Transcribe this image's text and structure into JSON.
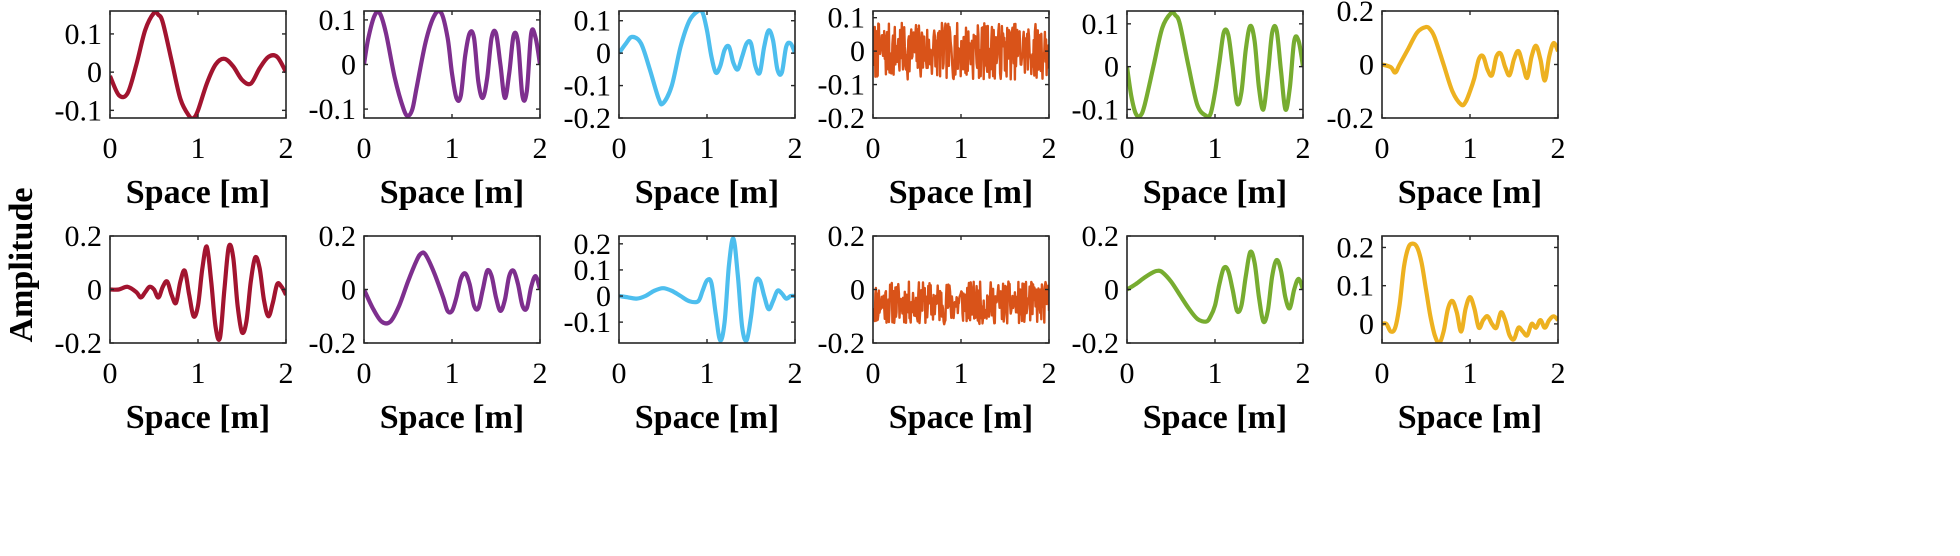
{
  "figure": {
    "ylabel": "Amplitude"
  },
  "chart_data": [
    {
      "type": "line",
      "row": 0,
      "col": 0,
      "color": "#A2142F",
      "xlabel": "Space [m]",
      "xlim": [
        0,
        2
      ],
      "ylim": [
        -0.12,
        0.16
      ],
      "xticks": [
        0,
        1,
        2
      ],
      "yticks": [
        -0.1,
        0,
        0.1
      ],
      "ytick_labels": [
        "-0.1",
        "0",
        "0.1"
      ],
      "series": [
        {
          "x": [
            0,
            0.1,
            0.2,
            0.3,
            0.4,
            0.5,
            0.55,
            0.6,
            0.7,
            0.8,
            0.9,
            0.95,
            1.0,
            1.1,
            1.2,
            1.3,
            1.4,
            1.5,
            1.6,
            1.7,
            1.8,
            1.9,
            2.0
          ],
          "y": [
            -0.01,
            -0.06,
            -0.055,
            0.02,
            0.11,
            0.155,
            0.15,
            0.13,
            0.03,
            -0.07,
            -0.115,
            -0.12,
            -0.1,
            -0.03,
            0.02,
            0.035,
            0.015,
            -0.02,
            -0.03,
            0.01,
            0.04,
            0.04,
            0.0
          ]
        }
      ]
    },
    {
      "type": "line",
      "row": 0,
      "col": 1,
      "color": "#7E2F8E",
      "xlabel": "Space [m]",
      "xlim": [
        0,
        2
      ],
      "ylim": [
        -0.12,
        0.12
      ],
      "xticks": [
        0,
        1,
        2
      ],
      "yticks": [
        -0.1,
        0,
        0.1
      ],
      "ytick_labels": [
        "-0.1",
        "0",
        "0.1"
      ],
      "series": [
        {
          "x": [
            0,
            0.05,
            0.12,
            0.18,
            0.25,
            0.35,
            0.45,
            0.5,
            0.55,
            0.6,
            0.7,
            0.8,
            0.88,
            0.95,
            1.0,
            1.05,
            1.1,
            1.15,
            1.2,
            1.25,
            1.3,
            1.35,
            1.4,
            1.45,
            1.5,
            1.55,
            1.6,
            1.65,
            1.7,
            1.75,
            1.8,
            1.85,
            1.9,
            1.95,
            2.0
          ],
          "y": [
            0.0,
            0.06,
            0.11,
            0.115,
            0.07,
            -0.03,
            -0.1,
            -0.115,
            -0.1,
            -0.05,
            0.05,
            0.11,
            0.115,
            0.06,
            -0.02,
            -0.075,
            -0.07,
            0.02,
            0.07,
            0.06,
            -0.04,
            -0.075,
            -0.03,
            0.06,
            0.07,
            0.0,
            -0.075,
            -0.02,
            0.065,
            0.05,
            -0.07,
            -0.06,
            0.07,
            0.06,
            0.0
          ]
        }
      ]
    },
    {
      "type": "line",
      "row": 0,
      "col": 2,
      "color": "#4DBEEE",
      "xlabel": "Space [m]",
      "xlim": [
        0,
        2
      ],
      "ylim": [
        -0.2,
        0.13
      ],
      "xticks": [
        0,
        1,
        2
      ],
      "yticks": [
        -0.2,
        -0.1,
        0,
        0.1
      ],
      "ytick_labels": [
        "-0.2",
        "-0.1",
        "0",
        "0.1"
      ],
      "series": [
        {
          "x": [
            0,
            0.08,
            0.15,
            0.25,
            0.35,
            0.45,
            0.5,
            0.6,
            0.7,
            0.8,
            0.9,
            0.95,
            1.0,
            1.05,
            1.1,
            1.15,
            1.2,
            1.25,
            1.3,
            1.35,
            1.4,
            1.45,
            1.5,
            1.55,
            1.6,
            1.65,
            1.7,
            1.75,
            1.8,
            1.85,
            1.9,
            1.95,
            2.0
          ],
          "y": [
            0.0,
            0.03,
            0.05,
            0.03,
            -0.05,
            -0.14,
            -0.155,
            -0.1,
            0.02,
            0.1,
            0.13,
            0.125,
            0.07,
            -0.01,
            -0.06,
            -0.04,
            0.01,
            0.02,
            -0.03,
            -0.05,
            -0.01,
            0.03,
            0.03,
            -0.04,
            -0.06,
            0.02,
            0.07,
            0.04,
            -0.05,
            -0.06,
            0.02,
            0.03,
            0.0
          ]
        }
      ]
    },
    {
      "type": "line",
      "row": 0,
      "col": 3,
      "color": "#D95319",
      "xlabel": "Space [m]",
      "xlim": [
        0,
        2
      ],
      "ylim": [
        -0.2,
        0.12
      ],
      "xticks": [
        0,
        1,
        2
      ],
      "yticks": [
        -0.2,
        -0.1,
        0,
        0.1
      ],
      "ytick_labels": [
        "-0.2",
        "-0.1",
        "0",
        "0.1"
      ],
      "noise": {
        "n": 300,
        "center": 0.0,
        "amplitude": 0.085,
        "seed": 7
      },
      "series": []
    },
    {
      "type": "line",
      "row": 0,
      "col": 4,
      "color": "#77AC30",
      "xlabel": "Space [m]",
      "xlim": [
        0,
        2
      ],
      "ylim": [
        -0.12,
        0.13
      ],
      "xticks": [
        0,
        1,
        2
      ],
      "yticks": [
        -0.1,
        0,
        0.1
      ],
      "ytick_labels": [
        "-0.1",
        "0",
        "0.1"
      ],
      "series": [
        {
          "x": [
            0,
            0.05,
            0.1,
            0.15,
            0.2,
            0.3,
            0.4,
            0.5,
            0.55,
            0.6,
            0.7,
            0.8,
            0.9,
            0.95,
            1.0,
            1.05,
            1.1,
            1.15,
            1.2,
            1.25,
            1.3,
            1.35,
            1.4,
            1.45,
            1.5,
            1.55,
            1.6,
            1.65,
            1.7,
            1.75,
            1.8,
            1.85,
            1.9,
            1.95,
            2.0
          ],
          "y": [
            0.0,
            -0.07,
            -0.11,
            -0.115,
            -0.09,
            0.0,
            0.09,
            0.125,
            0.12,
            0.1,
            0.0,
            -0.09,
            -0.115,
            -0.11,
            -0.06,
            0.01,
            0.08,
            0.075,
            0.0,
            -0.085,
            -0.06,
            0.04,
            0.095,
            0.06,
            -0.05,
            -0.1,
            -0.02,
            0.08,
            0.085,
            -0.01,
            -0.1,
            -0.05,
            0.06,
            0.06,
            0.0
          ]
        }
      ]
    },
    {
      "type": "line",
      "row": 0,
      "col": 5,
      "color": "#EDB120",
      "xlabel": "Space [m]",
      "xlim": [
        0,
        2
      ],
      "ylim": [
        -0.2,
        0.2
      ],
      "xticks": [
        0,
        1,
        2
      ],
      "yticks": [
        -0.2,
        0,
        0.2
      ],
      "ytick_labels": [
        "-0.2",
        "0",
        "0.2"
      ],
      "series": [
        {
          "x": [
            0,
            0.1,
            0.15,
            0.2,
            0.3,
            0.4,
            0.5,
            0.55,
            0.6,
            0.7,
            0.8,
            0.9,
            0.95,
            1.0,
            1.05,
            1.1,
            1.15,
            1.2,
            1.25,
            1.3,
            1.35,
            1.4,
            1.45,
            1.5,
            1.55,
            1.6,
            1.65,
            1.7,
            1.75,
            1.8,
            1.85,
            1.9,
            1.95,
            2.0
          ],
          "y": [
            0.0,
            -0.01,
            -0.03,
            0.0,
            0.06,
            0.12,
            0.14,
            0.13,
            0.1,
            0.0,
            -0.1,
            -0.15,
            -0.14,
            -0.1,
            -0.05,
            0.02,
            0.03,
            -0.02,
            -0.04,
            0.03,
            0.04,
            -0.01,
            -0.04,
            0.02,
            0.05,
            0.0,
            -0.05,
            0.03,
            0.07,
            0.02,
            -0.06,
            0.03,
            0.08,
            0.05
          ]
        }
      ]
    },
    {
      "type": "line",
      "row": 1,
      "col": 0,
      "color": "#A2142F",
      "xlabel": "Space [m]",
      "xlim": [
        0,
        2
      ],
      "ylim": [
        -0.2,
        0.2
      ],
      "xticks": [
        0,
        1,
        2
      ],
      "yticks": [
        -0.2,
        0,
        0.2
      ],
      "ytick_labels": [
        "-0.2",
        "0",
        "0.2"
      ],
      "series": [
        {
          "x": [
            0,
            0.1,
            0.2,
            0.3,
            0.35,
            0.4,
            0.45,
            0.5,
            0.55,
            0.6,
            0.65,
            0.7,
            0.75,
            0.8,
            0.85,
            0.9,
            0.95,
            1.0,
            1.05,
            1.1,
            1.15,
            1.2,
            1.25,
            1.3,
            1.35,
            1.4,
            1.45,
            1.5,
            1.55,
            1.6,
            1.65,
            1.7,
            1.75,
            1.8,
            1.85,
            1.9,
            1.95,
            2.0
          ],
          "y": [
            0.0,
            0.0,
            0.01,
            -0.01,
            -0.03,
            -0.01,
            0.01,
            0.0,
            -0.03,
            0.01,
            0.03,
            -0.02,
            -0.05,
            0.03,
            0.07,
            -0.02,
            -0.1,
            -0.06,
            0.08,
            0.16,
            0.03,
            -0.14,
            -0.18,
            0.0,
            0.16,
            0.12,
            -0.06,
            -0.16,
            -0.12,
            0.03,
            0.12,
            0.08,
            -0.04,
            -0.1,
            -0.05,
            0.02,
            0.01,
            -0.02
          ]
        }
      ]
    },
    {
      "type": "line",
      "row": 1,
      "col": 1,
      "color": "#7E2F8E",
      "xlabel": "Space [m]",
      "xlim": [
        0,
        2
      ],
      "ylim": [
        -0.2,
        0.2
      ],
      "xticks": [
        0,
        1,
        2
      ],
      "yticks": [
        -0.2,
        0,
        0.2
      ],
      "ytick_labels": [
        "-0.2",
        "0",
        "0.2"
      ],
      "series": [
        {
          "x": [
            0,
            0.1,
            0.2,
            0.3,
            0.4,
            0.5,
            0.6,
            0.65,
            0.7,
            0.8,
            0.9,
            0.95,
            1.0,
            1.05,
            1.1,
            1.15,
            1.2,
            1.25,
            1.3,
            1.35,
            1.4,
            1.45,
            1.5,
            1.55,
            1.6,
            1.65,
            1.7,
            1.75,
            1.8,
            1.85,
            1.9,
            1.95,
            2.0
          ],
          "y": [
            0.0,
            -0.07,
            -0.12,
            -0.12,
            -0.06,
            0.03,
            0.11,
            0.135,
            0.13,
            0.06,
            -0.03,
            -0.08,
            -0.08,
            -0.03,
            0.04,
            0.06,
            0.02,
            -0.06,
            -0.07,
            0.0,
            0.07,
            0.05,
            -0.03,
            -0.08,
            -0.04,
            0.05,
            0.07,
            0.02,
            -0.06,
            -0.07,
            0.01,
            0.05,
            0.0
          ]
        }
      ]
    },
    {
      "type": "line",
      "row": 1,
      "col": 2,
      "color": "#4DBEEE",
      "xlabel": "Space [m]",
      "xlim": [
        0,
        2
      ],
      "ylim": [
        -0.18,
        0.23
      ],
      "xticks": [
        0,
        1,
        2
      ],
      "yticks": [
        -0.1,
        0,
        0.1,
        0.2
      ],
      "ytick_labels": [
        "-0.1",
        "0",
        "0.1",
        "0.2"
      ],
      "series": [
        {
          "x": [
            0,
            0.1,
            0.2,
            0.3,
            0.4,
            0.5,
            0.6,
            0.7,
            0.8,
            0.9,
            0.95,
            1.0,
            1.05,
            1.1,
            1.15,
            1.2,
            1.25,
            1.3,
            1.35,
            1.4,
            1.45,
            1.5,
            1.55,
            1.6,
            1.65,
            1.7,
            1.75,
            1.8,
            1.85,
            1.9,
            1.95,
            2.0
          ],
          "y": [
            0.0,
            -0.005,
            -0.01,
            0.0,
            0.02,
            0.03,
            0.02,
            0.0,
            -0.02,
            -0.02,
            0.02,
            0.06,
            0.05,
            -0.07,
            -0.17,
            -0.1,
            0.12,
            0.22,
            0.08,
            -0.12,
            -0.17,
            -0.08,
            0.05,
            0.06,
            0.0,
            -0.05,
            -0.02,
            0.02,
            0.01,
            -0.01,
            0.0,
            0.0
          ]
        }
      ]
    },
    {
      "type": "line",
      "row": 1,
      "col": 3,
      "color": "#D95319",
      "xlabel": "Space [m]",
      "xlim": [
        0,
        2
      ],
      "ylim": [
        -0.2,
        0.2
      ],
      "xticks": [
        0,
        1,
        2
      ],
      "yticks": [
        -0.2,
        0,
        0.2
      ],
      "ytick_labels": [
        "-0.2",
        "0",
        "0.2"
      ],
      "noise": {
        "n": 300,
        "center": -0.05,
        "amplitude": 0.08,
        "seed": 11
      },
      "series": []
    },
    {
      "type": "line",
      "row": 1,
      "col": 4,
      "color": "#77AC30",
      "xlabel": "Space [m]",
      "xlim": [
        0,
        2
      ],
      "ylim": [
        -0.2,
        0.2
      ],
      "xticks": [
        0,
        1,
        2
      ],
      "yticks": [
        -0.2,
        0,
        0.2
      ],
      "ytick_labels": [
        "-0.2",
        "0",
        "0.2"
      ],
      "series": [
        {
          "x": [
            0,
            0.1,
            0.2,
            0.3,
            0.35,
            0.4,
            0.5,
            0.6,
            0.7,
            0.8,
            0.9,
            0.95,
            1.0,
            1.05,
            1.1,
            1.15,
            1.2,
            1.25,
            1.3,
            1.35,
            1.4,
            1.45,
            1.5,
            1.55,
            1.6,
            1.65,
            1.7,
            1.75,
            1.8,
            1.85,
            1.9,
            1.95,
            2.0
          ],
          "y": [
            0.0,
            0.02,
            0.045,
            0.065,
            0.07,
            0.065,
            0.03,
            -0.02,
            -0.07,
            -0.11,
            -0.12,
            -0.1,
            -0.06,
            0.02,
            0.08,
            0.07,
            0.0,
            -0.08,
            -0.06,
            0.05,
            0.14,
            0.1,
            -0.03,
            -0.12,
            -0.08,
            0.05,
            0.11,
            0.07,
            -0.03,
            -0.07,
            0.0,
            0.04,
            0.0
          ]
        }
      ]
    },
    {
      "type": "line",
      "row": 1,
      "col": 5,
      "color": "#EDB120",
      "xlabel": "Space [m]",
      "xlim": [
        0,
        2
      ],
      "ylim": [
        -0.05,
        0.23
      ],
      "xticks": [
        0,
        1,
        2
      ],
      "yticks": [
        0,
        0.1,
        0.2
      ],
      "ytick_labels": [
        "0",
        "0.1",
        "0.2"
      ],
      "series": [
        {
          "x": [
            0,
            0.05,
            0.1,
            0.15,
            0.2,
            0.25,
            0.3,
            0.35,
            0.4,
            0.45,
            0.5,
            0.55,
            0.6,
            0.65,
            0.7,
            0.75,
            0.8,
            0.85,
            0.9,
            0.95,
            1.0,
            1.05,
            1.1,
            1.15,
            1.2,
            1.25,
            1.3,
            1.35,
            1.4,
            1.45,
            1.5,
            1.55,
            1.6,
            1.65,
            1.7,
            1.75,
            1.8,
            1.85,
            1.9,
            1.95,
            2.0
          ],
          "y": [
            0.0,
            0.0,
            -0.02,
            -0.01,
            0.05,
            0.15,
            0.2,
            0.21,
            0.2,
            0.16,
            0.09,
            0.02,
            -0.03,
            -0.05,
            -0.02,
            0.04,
            0.06,
            0.03,
            -0.02,
            0.04,
            0.07,
            0.04,
            -0.01,
            0.01,
            0.02,
            0.0,
            -0.01,
            0.03,
            0.01,
            -0.03,
            -0.04,
            -0.01,
            -0.02,
            -0.03,
            0.0,
            -0.01,
            0.01,
            -0.01,
            0.01,
            0.02,
            0.01
          ]
        }
      ]
    }
  ]
}
